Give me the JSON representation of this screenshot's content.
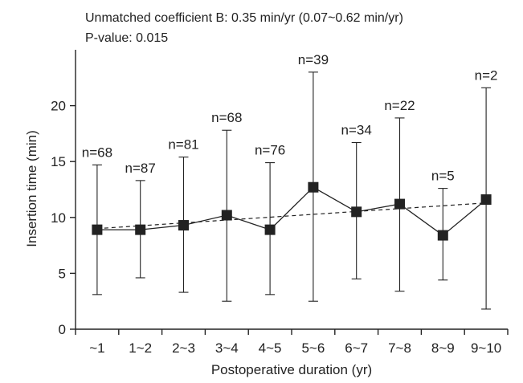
{
  "chart_data": {
    "type": "line",
    "annotation_lines": [
      "Unmatched coefficient B: 0.35 min/yr (0.07~0.62 min/yr)",
      "P-value: 0.015"
    ],
    "xlabel": "Postoperative duration (yr)",
    "ylabel": "Insertion time (min)",
    "ylim": [
      0,
      25
    ],
    "yticks": [
      0,
      5,
      10,
      15,
      20
    ],
    "categories": [
      "~1",
      "1~2",
      "2~3",
      "3~4",
      "4~5",
      "5~6",
      "6~7",
      "7~8",
      "8~9",
      "9~10"
    ],
    "n_labels": [
      "n=68",
      "n=87",
      "n=81",
      "n=68",
      "n=76",
      "n=39",
      "n=34",
      "n=22",
      "n=5",
      "n=2"
    ],
    "series": [
      {
        "values": [
          8.9,
          8.9,
          9.3,
          10.2,
          8.9,
          12.7,
          10.5,
          11.2,
          8.4,
          11.6
        ],
        "error_low": [
          3.1,
          4.6,
          3.3,
          2.5,
          3.1,
          2.5,
          4.5,
          3.4,
          4.4,
          1.8
        ],
        "error_high": [
          14.7,
          13.3,
          15.4,
          17.8,
          14.9,
          23.0,
          16.7,
          18.9,
          12.6,
          21.6
        ],
        "marker": "square",
        "line_style": "solid",
        "color": "#222222"
      }
    ],
    "trend_line": {
      "style": "dashed",
      "start": 9.0,
      "end": 11.3
    },
    "grid": false,
    "legend": "none"
  }
}
